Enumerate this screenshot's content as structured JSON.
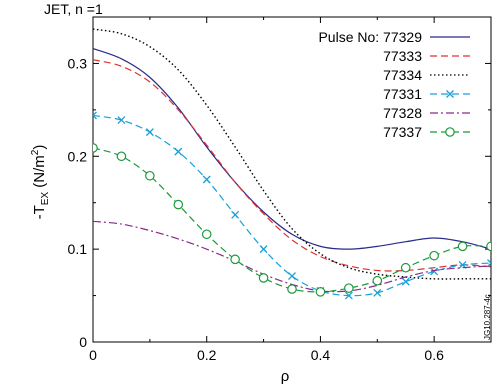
{
  "chart_data": {
    "type": "line",
    "title": "JET, n =1",
    "xlabel": "ρ",
    "ylabel": "-T",
    "ylabel_sub": "EX",
    "ylabel_unit": " (N/m",
    "ylabel_sup": "2",
    "ylabel_end": ")",
    "xlim": [
      0,
      0.7
    ],
    "ylim": [
      0,
      0.35
    ],
    "xticks": [
      0,
      0.2,
      0.4,
      0.6
    ],
    "xtick_labels": [
      "0",
      "0.2",
      "0.4",
      "0.6"
    ],
    "yticks": [
      0,
      0.1,
      0.2,
      0.3
    ],
    "ytick_labels": [
      "0",
      "0.1",
      "0.2",
      "0.3"
    ],
    "grid": false,
    "legend_position": "top-right",
    "legend_prefix": "Pulse No: ",
    "reference": "JG10.287-4c",
    "series": [
      {
        "name": "77329",
        "color": "#2a2a8a",
        "dash": "",
        "marker": "none",
        "x": [
          0,
          0.05,
          0.1,
          0.15,
          0.2,
          0.25,
          0.3,
          0.35,
          0.4,
          0.45,
          0.5,
          0.55,
          0.6,
          0.65,
          0.7
        ],
        "y": [
          0.316,
          0.305,
          0.285,
          0.252,
          0.21,
          0.172,
          0.14,
          0.116,
          0.103,
          0.1,
          0.103,
          0.108,
          0.112,
          0.108,
          0.1
        ]
      },
      {
        "name": "77333",
        "color": "#e03030",
        "dash": "7,4",
        "marker": "none",
        "x": [
          0,
          0.05,
          0.1,
          0.15,
          0.2,
          0.25,
          0.3,
          0.35,
          0.4,
          0.45,
          0.5,
          0.55,
          0.6,
          0.65,
          0.7
        ],
        "y": [
          0.304,
          0.297,
          0.28,
          0.25,
          0.212,
          0.172,
          0.138,
          0.11,
          0.092,
          0.082,
          0.077,
          0.077,
          0.08,
          0.083,
          0.081
        ]
      },
      {
        "name": "77334",
        "color": "#000000",
        "dash": "1.5,2.5",
        "marker": "none",
        "x": [
          0,
          0.05,
          0.1,
          0.15,
          0.2,
          0.25,
          0.3,
          0.35,
          0.4,
          0.45,
          0.5,
          0.55,
          0.6,
          0.65,
          0.7
        ],
        "y": [
          0.337,
          0.332,
          0.318,
          0.293,
          0.255,
          0.21,
          0.163,
          0.122,
          0.095,
          0.08,
          0.073,
          0.07,
          0.068,
          0.068,
          0.068
        ]
      },
      {
        "name": "77331",
        "color": "#1aa0d8",
        "dash": "7,4",
        "marker": "x",
        "x": [
          0,
          0.05,
          0.1,
          0.15,
          0.2,
          0.25,
          0.3,
          0.35,
          0.4,
          0.45,
          0.5,
          0.55,
          0.6,
          0.65,
          0.7
        ],
        "y": [
          0.244,
          0.239,
          0.226,
          0.205,
          0.175,
          0.137,
          0.1,
          0.071,
          0.055,
          0.05,
          0.053,
          0.065,
          0.076,
          0.083,
          0.085
        ]
      },
      {
        "name": "77328",
        "color": "#8a2a8a",
        "dash": "8,3,2,3",
        "marker": "none",
        "x": [
          0,
          0.05,
          0.1,
          0.15,
          0.2,
          0.25,
          0.3,
          0.35,
          0.4,
          0.45,
          0.5,
          0.55,
          0.6,
          0.65,
          0.7
        ],
        "y": [
          0.13,
          0.127,
          0.12,
          0.111,
          0.1,
          0.087,
          0.073,
          0.062,
          0.055,
          0.055,
          0.061,
          0.07,
          0.077,
          0.08,
          0.082
        ]
      },
      {
        "name": "77337",
        "color": "#1a9a3a",
        "dash": "7,4",
        "marker": "circle",
        "x": [
          0,
          0.05,
          0.1,
          0.15,
          0.2,
          0.25,
          0.3,
          0.35,
          0.4,
          0.45,
          0.5,
          0.55,
          0.6,
          0.65,
          0.7
        ],
        "y": [
          0.209,
          0.2,
          0.179,
          0.148,
          0.116,
          0.089,
          0.069,
          0.057,
          0.054,
          0.058,
          0.066,
          0.08,
          0.093,
          0.103,
          0.103
        ]
      }
    ]
  }
}
